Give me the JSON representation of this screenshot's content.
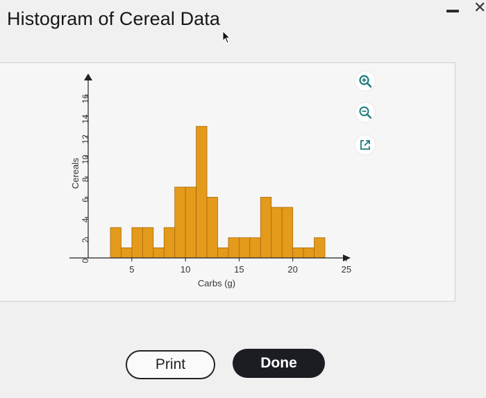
{
  "page": {
    "title": "Histogram of Cereal Data"
  },
  "buttons": {
    "print": "Print",
    "done": "Done"
  },
  "tools": [
    "zoom-in-icon",
    "zoom-out-icon",
    "open-new-window-icon"
  ],
  "colors": {
    "bar_fill": "#e49a1a",
    "bar_stroke": "#a8680a",
    "done_bg": "#1b1d22"
  },
  "chart_data": {
    "type": "bar",
    "title": "",
    "xlabel": "Carbs (g)",
    "ylabel": "Cereals",
    "xlim": [
      3,
      27
    ],
    "ylim": [
      0,
      16
    ],
    "xticks": [
      5,
      10,
      15,
      20,
      25
    ],
    "yticks": [
      0,
      2,
      4,
      6,
      8,
      10,
      12,
      14,
      16
    ],
    "bin_width": 1,
    "bins": [
      {
        "x0": 3,
        "x1": 4,
        "count": 3
      },
      {
        "x0": 4,
        "x1": 5,
        "count": 1
      },
      {
        "x0": 5,
        "x1": 6,
        "count": 3
      },
      {
        "x0": 6,
        "x1": 7,
        "count": 3
      },
      {
        "x0": 7,
        "x1": 8,
        "count": 1
      },
      {
        "x0": 8,
        "x1": 9,
        "count": 3
      },
      {
        "x0": 9,
        "x1": 10,
        "count": 7
      },
      {
        "x0": 10,
        "x1": 11,
        "count": 7
      },
      {
        "x0": 11,
        "x1": 12,
        "count": 13
      },
      {
        "x0": 12,
        "x1": 13,
        "count": 6
      },
      {
        "x0": 13,
        "x1": 14,
        "count": 1
      },
      {
        "x0": 14,
        "x1": 15,
        "count": 2
      },
      {
        "x0": 15,
        "x1": 16,
        "count": 2
      },
      {
        "x0": 16,
        "x1": 17,
        "count": 2
      },
      {
        "x0": 17,
        "x1": 18,
        "count": 6
      },
      {
        "x0": 18,
        "x1": 19,
        "count": 5
      },
      {
        "x0": 19,
        "x1": 20,
        "count": 5
      },
      {
        "x0": 20,
        "x1": 21,
        "count": 1
      },
      {
        "x0": 21,
        "x1": 22,
        "count": 1
      },
      {
        "x0": 22,
        "x1": 23,
        "count": 2
      }
    ],
    "grid": false,
    "legend": "none"
  }
}
